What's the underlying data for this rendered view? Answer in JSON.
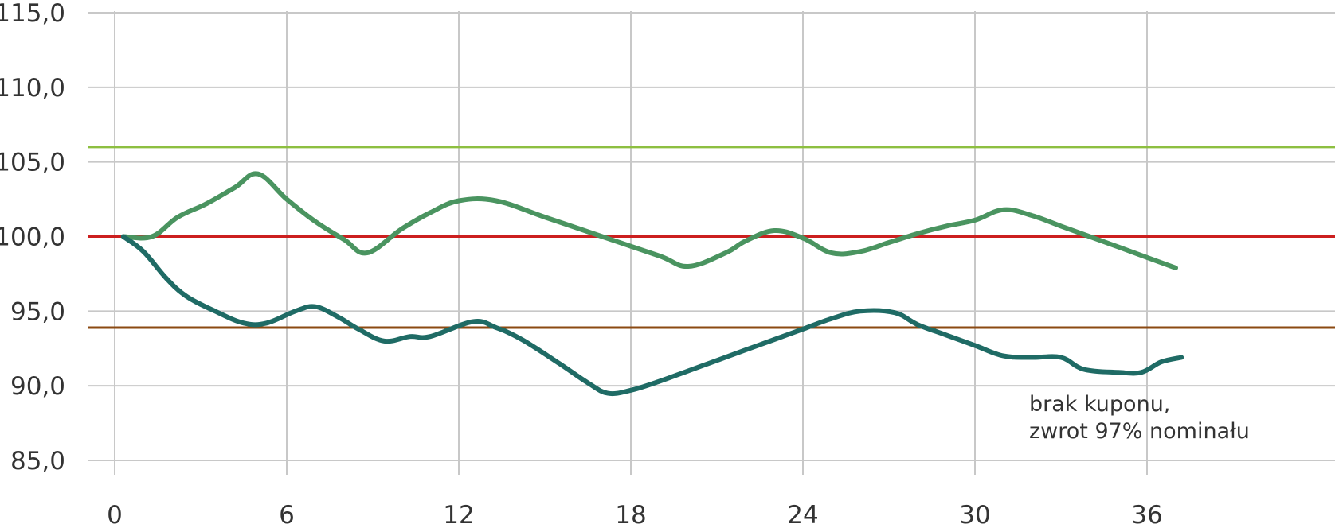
{
  "chart_data": {
    "type": "line",
    "title": "",
    "xlabel": "",
    "ylabel": "",
    "xlim": [
      0,
      42
    ],
    "ylim": [
      85,
      115
    ],
    "x_ticks": [
      0,
      6,
      12,
      18,
      24,
      30,
      36
    ],
    "x_tick_labels": [
      "0",
      "6",
      "12",
      "18",
      "24",
      "30",
      "36"
    ],
    "y_ticks": [
      85,
      90,
      95,
      100,
      105,
      110,
      115
    ],
    "y_tick_labels": [
      "85,0",
      "90,0",
      "95,0",
      "100,0",
      "105,0",
      "110,0",
      "115,0"
    ],
    "grid": true,
    "legend": "none",
    "reference_lines": [
      {
        "y": 106,
        "color": "#8dbf40"
      },
      {
        "y": 100,
        "color": "#cc1f1f"
      },
      {
        "y": 93.9,
        "color": "#8b4a12"
      }
    ],
    "series": [
      {
        "color": "#4a9460",
        "x": [
          0.3,
          1.3,
          2.2,
          3.2,
          4.2,
          5.0,
          6.0,
          7.0,
          8.0,
          8.8,
          10.0,
          11.0,
          12.0,
          13.3,
          15.0,
          17.0,
          19.0,
          20.0,
          21.3,
          22.0,
          23.0,
          24.0,
          25.0,
          26.0,
          27.0,
          28.0,
          29.0,
          30.0,
          31.0,
          32.0,
          33.0,
          34.0,
          35.0,
          36.0,
          37.0
        ],
        "y": [
          100.0,
          100.0,
          101.3,
          102.2,
          103.3,
          104.2,
          102.5,
          101.0,
          99.8,
          98.9,
          100.5,
          101.6,
          102.4,
          102.4,
          101.3,
          100.0,
          98.7,
          98.0,
          98.9,
          99.7,
          100.4,
          99.9,
          98.9,
          99.0,
          99.6,
          100.2,
          100.7,
          101.1,
          101.8,
          101.4,
          100.7,
          100.0,
          99.3,
          98.6,
          97.9
        ]
      },
      {
        "color": "#1f6b65",
        "x": [
          0.3,
          1.0,
          1.8,
          2.5,
          3.5,
          4.5,
          5.3,
          6.3,
          7.0,
          7.8,
          8.5,
          9.4,
          10.3,
          11.0,
          12.5,
          13.3,
          14.2,
          15.5,
          16.5,
          17.2,
          18.0,
          19.0,
          20.0,
          21.0,
          22.0,
          23.0,
          24.0,
          25.0,
          26.0,
          27.2,
          28.0,
          29.0,
          30.0,
          31.0,
          32.0,
          33.0,
          33.8,
          35.0,
          35.8,
          36.5,
          37.2
        ],
        "y": [
          100.0,
          99.0,
          97.2,
          96.0,
          95.0,
          94.2,
          94.2,
          95.0,
          95.3,
          94.6,
          93.8,
          93.0,
          93.3,
          93.3,
          94.3,
          93.9,
          93.1,
          91.5,
          90.2,
          89.5,
          89.7,
          90.3,
          91.0,
          91.7,
          92.4,
          93.1,
          93.8,
          94.5,
          95.0,
          94.9,
          94.1,
          93.4,
          92.7,
          92.0,
          91.9,
          91.9,
          91.1,
          90.9,
          90.9,
          91.6,
          91.9
        ]
      }
    ],
    "annotations": [
      {
        "text": "brak kuponu, zwrot 97% nominału"
      }
    ]
  },
  "annotation": {
    "line1": "brak kuponu,",
    "line2": "zwrot 97% nominału"
  }
}
